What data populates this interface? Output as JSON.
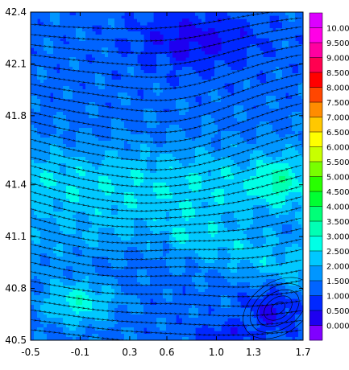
{
  "chart_data": {
    "type": "heatmap",
    "title": "",
    "xlabel": "",
    "ylabel": "",
    "x_ticks": [
      "-0.5",
      "-0.1",
      "0.3",
      "0.6",
      "1.0",
      "1.3",
      "1.7"
    ],
    "x_tick_values": [
      -0.5,
      -0.1,
      0.3,
      0.6,
      1.0,
      1.3,
      1.7
    ],
    "y_ticks": [
      "42.4",
      "42.1",
      "41.8",
      "41.4",
      "41.1",
      "40.8",
      "40.5"
    ],
    "y_tick_values": [
      42.4,
      42.1,
      41.8,
      41.4,
      41.1,
      40.8,
      40.5
    ],
    "xlim": [
      -0.5,
      1.7
    ],
    "ylim": [
      40.5,
      42.4
    ],
    "overlay": "streamlines",
    "colorbar": {
      "labels": [
        "0.000",
        "0.500",
        "1.000",
        "1.500",
        "2.000",
        "2.500",
        "3.000",
        "3.500",
        "4.000",
        "4.500",
        "5.000",
        "5.500",
        "6.000",
        "6.500",
        "7.000",
        "7.500",
        "8.000",
        "8.500",
        "9.000",
        "9.500",
        "10.00"
      ],
      "colors": [
        "#8000ff",
        "#1e00f0",
        "#0028ff",
        "#0064ff",
        "#0096ff",
        "#00c8ff",
        "#00ffe6",
        "#00ffb4",
        "#00ff78",
        "#00ff32",
        "#28ff00",
        "#78ff00",
        "#c8ff00",
        "#ffff00",
        "#ffc800",
        "#ff8c00",
        "#ff4600",
        "#ff0000",
        "#ff0050",
        "#ff00a0",
        "#ff00e6",
        "#dc00ff"
      ]
    }
  }
}
